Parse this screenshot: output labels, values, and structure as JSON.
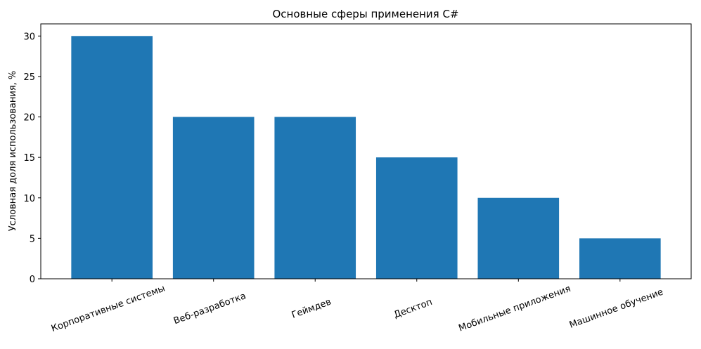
{
  "chart_data": {
    "type": "bar",
    "title": "Основные сферы применения C#",
    "y_label": "Условная доля использования, %",
    "categories": [
      "Корпоративные системы",
      "Веб-разработка",
      "Геймдев",
      "Десктоп",
      "Мобильные приложения",
      "Машинное обучение"
    ],
    "values": [
      30,
      20,
      20,
      15,
      10,
      5
    ],
    "color": "#1f77b4",
    "ylim": [
      0,
      31.5
    ],
    "yticks": [
      0,
      5,
      10,
      15,
      20,
      25,
      30
    ]
  }
}
